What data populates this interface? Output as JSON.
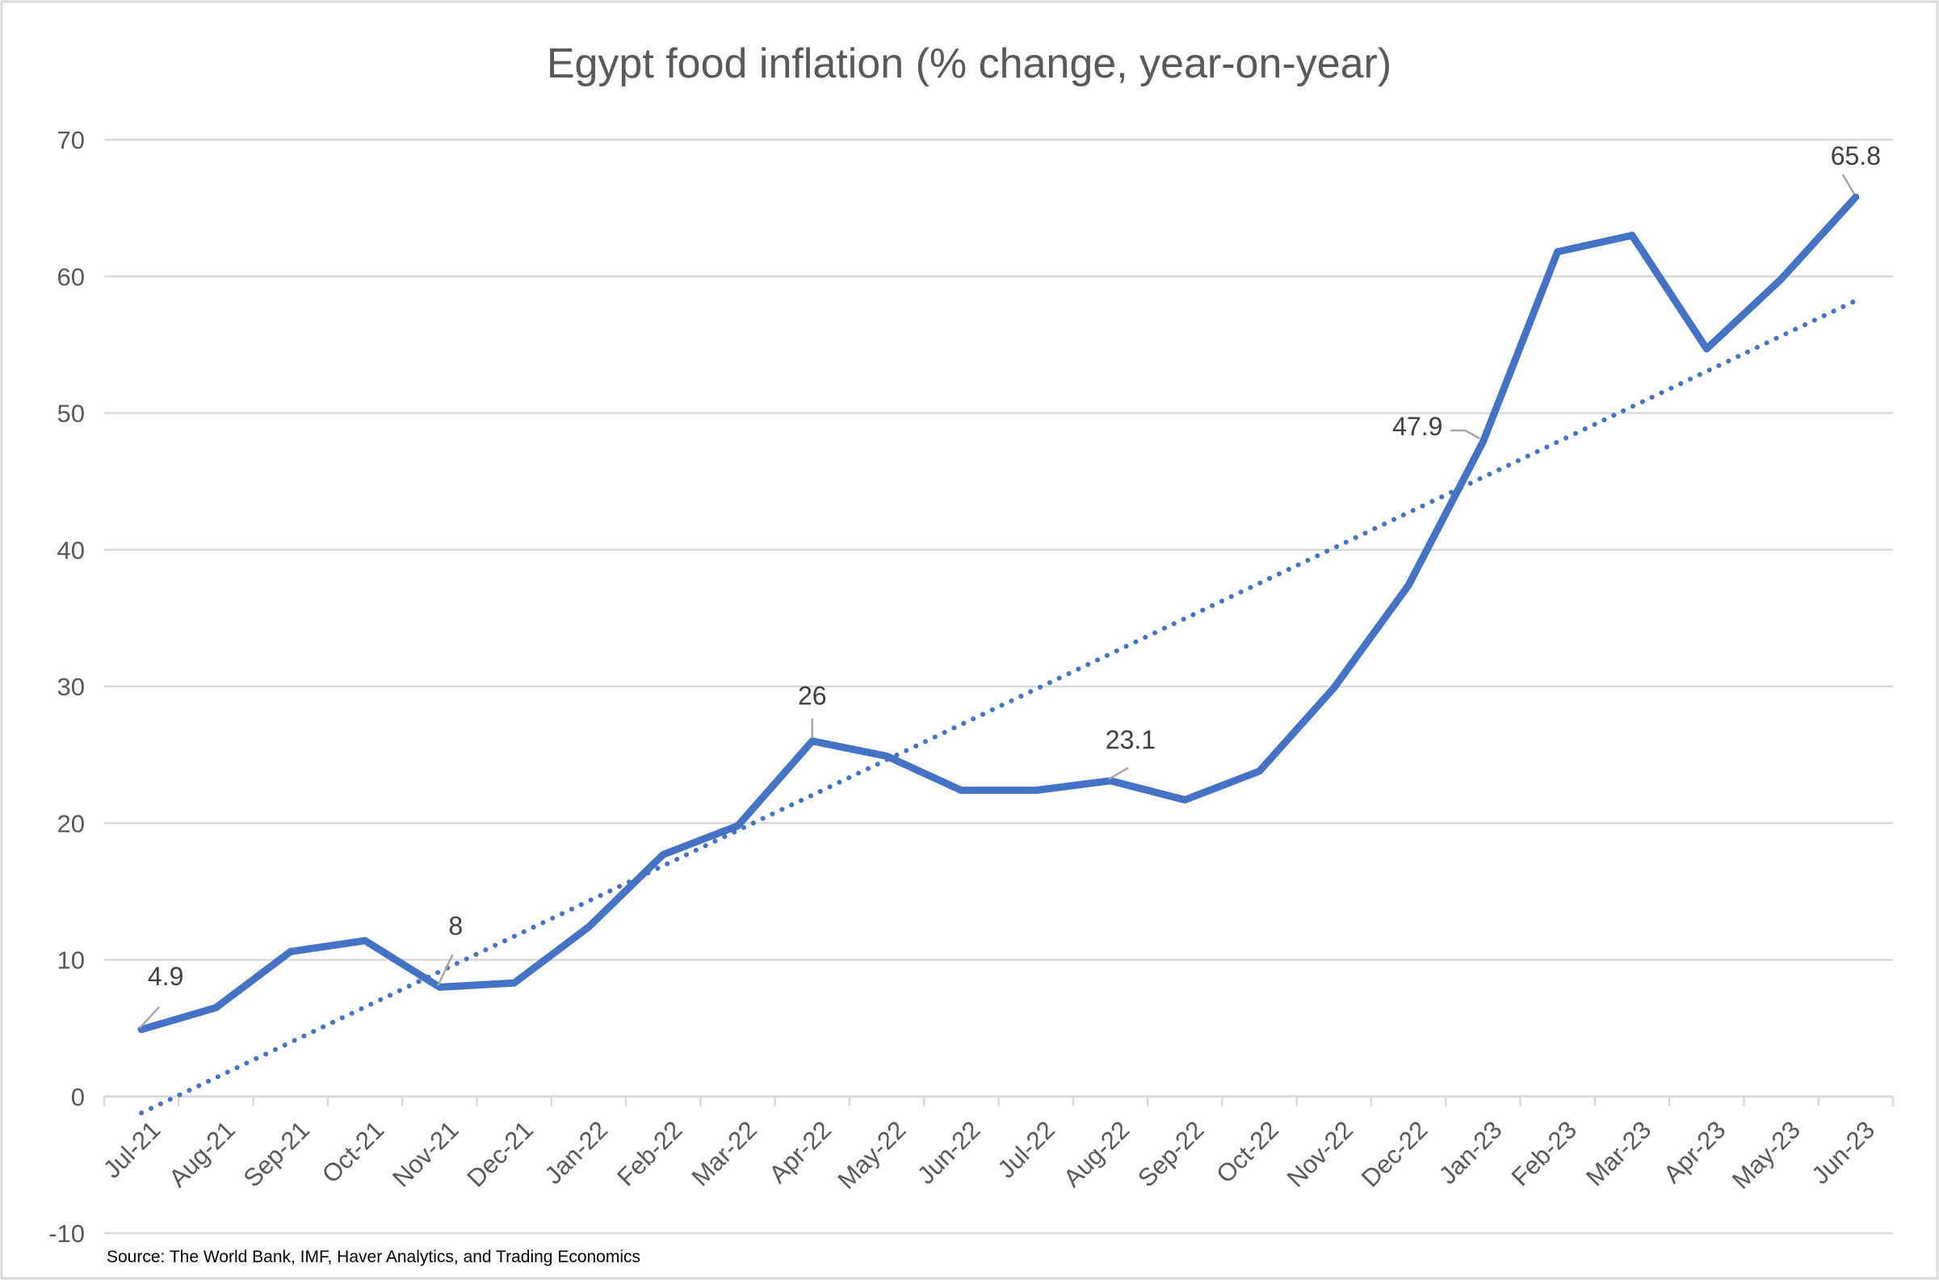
{
  "chart_data": {
    "type": "line",
    "title": "Egypt food inflation (% change, year-on-year)",
    "xlabel": "",
    "ylabel": "",
    "ylim": [
      -10,
      70
    ],
    "yticks": [
      -10,
      0,
      10,
      20,
      30,
      40,
      50,
      60,
      70
    ],
    "grid": true,
    "legend": "none",
    "categories": [
      "Jul-21",
      "Aug-21",
      "Sep-21",
      "Oct-21",
      "Nov-21",
      "Dec-21",
      "Jan-22",
      "Feb-22",
      "Mar-22",
      "Apr-22",
      "May-22",
      "Jun-22",
      "Jul-22",
      "Aug-22",
      "Sep-22",
      "Oct-22",
      "Nov-22",
      "Dec-22",
      "Jan-23",
      "Feb-23",
      "Mar-23",
      "Apr-23",
      "May-23",
      "Jun-23"
    ],
    "series": [
      {
        "values": [
          4.9,
          6.5,
          10.6,
          11.4,
          8,
          8.3,
          12.4,
          17.7,
          19.8,
          26,
          24.9,
          22.4,
          22.4,
          23.1,
          21.7,
          23.8,
          29.9,
          37.4,
          47.9,
          61.8,
          63.0,
          54.7,
          59.8,
          65.8
        ],
        "color": "#4472C4",
        "data_labels": {
          "Jul-21": "4.9",
          "Nov-21": "8",
          "Apr-22": "26",
          "Aug-22": "23.1",
          "Jan-23": "47.9",
          "Jun-23": "65.8"
        },
        "trendline": {
          "type": "linear",
          "style": "dotted",
          "color": "#4472C4"
        }
      }
    ],
    "source": "Source: The World Bank, IMF, Haver Analytics, and Trading Economics"
  }
}
